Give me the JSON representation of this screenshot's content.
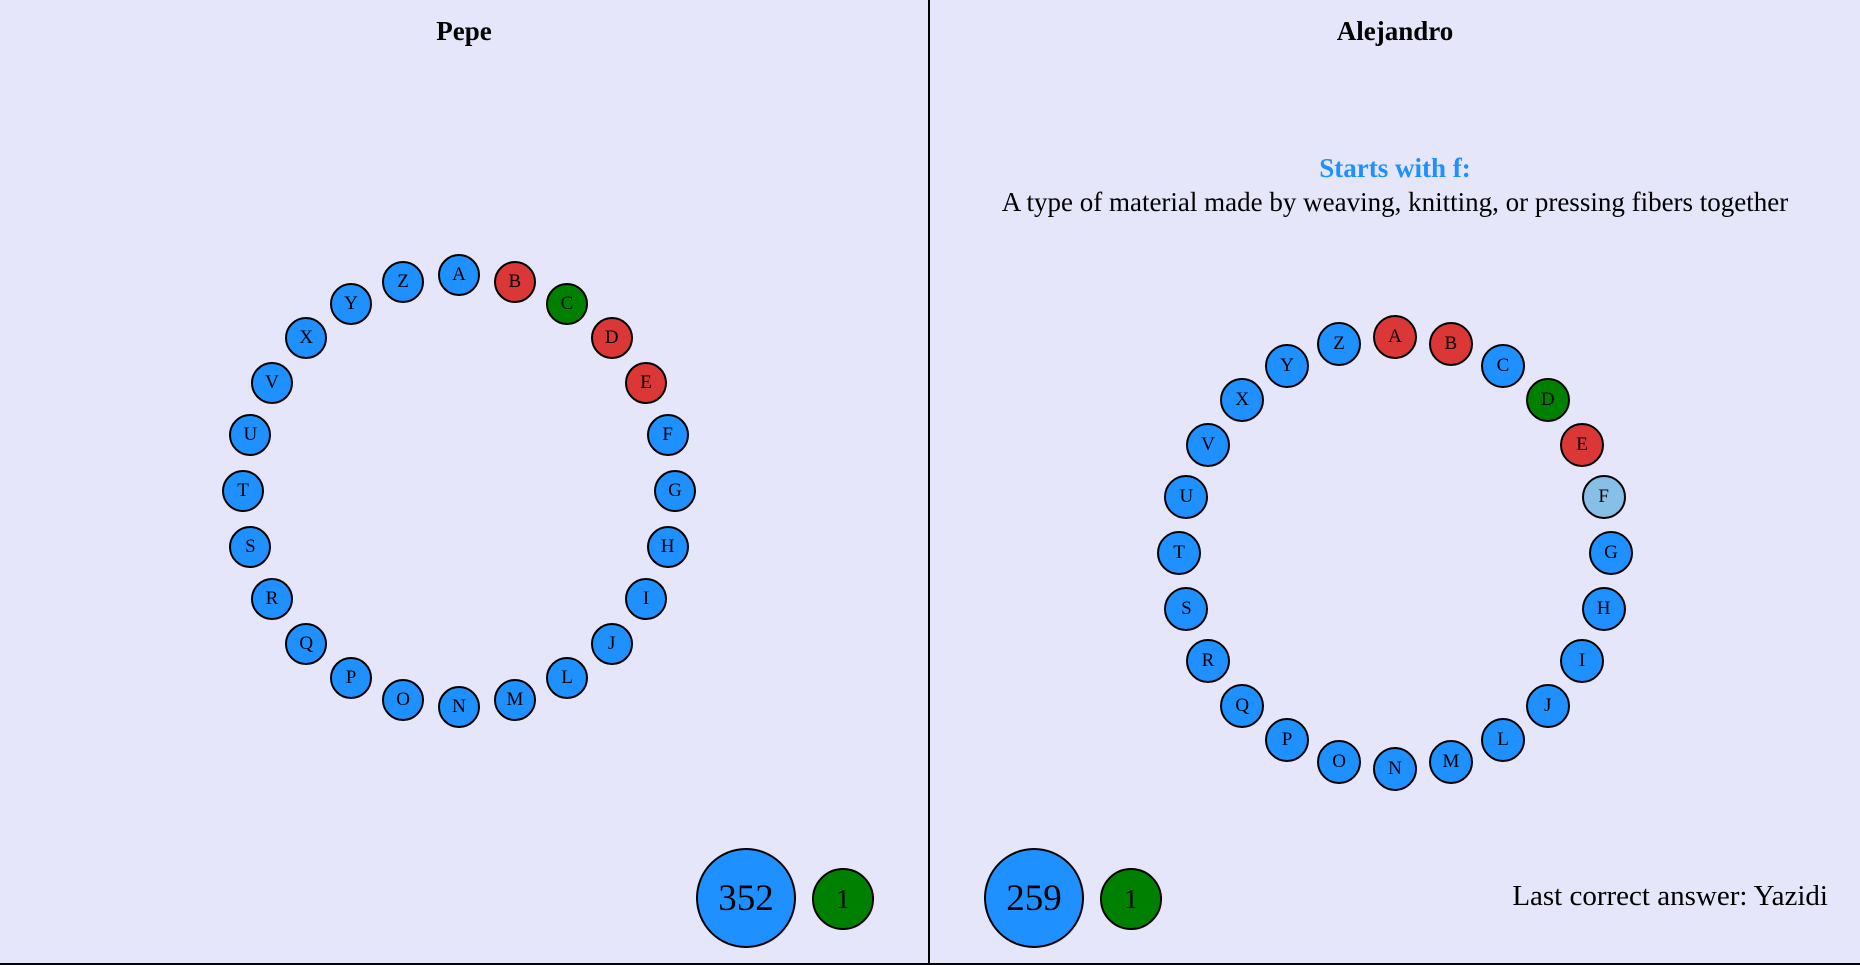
{
  "left": {
    "name": "Pepe",
    "score": "352",
    "correct_count": "1",
    "letters": [
      {
        "l": "A",
        "s": "pending"
      },
      {
        "l": "B",
        "s": "wrong"
      },
      {
        "l": "C",
        "s": "correct"
      },
      {
        "l": "D",
        "s": "wrong"
      },
      {
        "l": "E",
        "s": "wrong"
      },
      {
        "l": "F",
        "s": "pending"
      },
      {
        "l": "G",
        "s": "pending"
      },
      {
        "l": "H",
        "s": "pending"
      },
      {
        "l": "I",
        "s": "pending"
      },
      {
        "l": "J",
        "s": "pending"
      },
      {
        "l": "L",
        "s": "pending"
      },
      {
        "l": "M",
        "s": "pending"
      },
      {
        "l": "N",
        "s": "pending"
      },
      {
        "l": "O",
        "s": "pending"
      },
      {
        "l": "P",
        "s": "pending"
      },
      {
        "l": "Q",
        "s": "pending"
      },
      {
        "l": "R",
        "s": "pending"
      },
      {
        "l": "S",
        "s": "pending"
      },
      {
        "l": "T",
        "s": "pending"
      },
      {
        "l": "U",
        "s": "pending"
      },
      {
        "l": "V",
        "s": "pending"
      },
      {
        "l": "X",
        "s": "pending"
      },
      {
        "l": "Y",
        "s": "pending"
      },
      {
        "l": "Z",
        "s": "pending"
      }
    ]
  },
  "right": {
    "name": "Alejandro",
    "hint_title": "Starts with f:",
    "hint_text": "A type of material made by weaving, knitting, or pressing fibers together",
    "score": "259",
    "correct_count": "1",
    "last_answer": "Last correct answer: Yazidi",
    "letters": [
      {
        "l": "A",
        "s": "wrong"
      },
      {
        "l": "B",
        "s": "wrong"
      },
      {
        "l": "C",
        "s": "pending"
      },
      {
        "l": "D",
        "s": "correct"
      },
      {
        "l": "E",
        "s": "wrong"
      },
      {
        "l": "F",
        "s": "current"
      },
      {
        "l": "G",
        "s": "pending"
      },
      {
        "l": "H",
        "s": "pending"
      },
      {
        "l": "I",
        "s": "pending"
      },
      {
        "l": "J",
        "s": "pending"
      },
      {
        "l": "L",
        "s": "pending"
      },
      {
        "l": "M",
        "s": "pending"
      },
      {
        "l": "N",
        "s": "pending"
      },
      {
        "l": "O",
        "s": "pending"
      },
      {
        "l": "P",
        "s": "pending"
      },
      {
        "l": "Q",
        "s": "pending"
      },
      {
        "l": "R",
        "s": "pending"
      },
      {
        "l": "S",
        "s": "pending"
      },
      {
        "l": "T",
        "s": "pending"
      },
      {
        "l": "U",
        "s": "pending"
      },
      {
        "l": "V",
        "s": "pending"
      },
      {
        "l": "X",
        "s": "pending"
      },
      {
        "l": "Y",
        "s": "pending"
      },
      {
        "l": "Z",
        "s": "pending"
      }
    ]
  },
  "colors": {
    "background": "#e6e6fa",
    "pending": "#1e90ff",
    "wrong": "#dc3737",
    "correct": "#008000",
    "current": "#87bfe6"
  }
}
